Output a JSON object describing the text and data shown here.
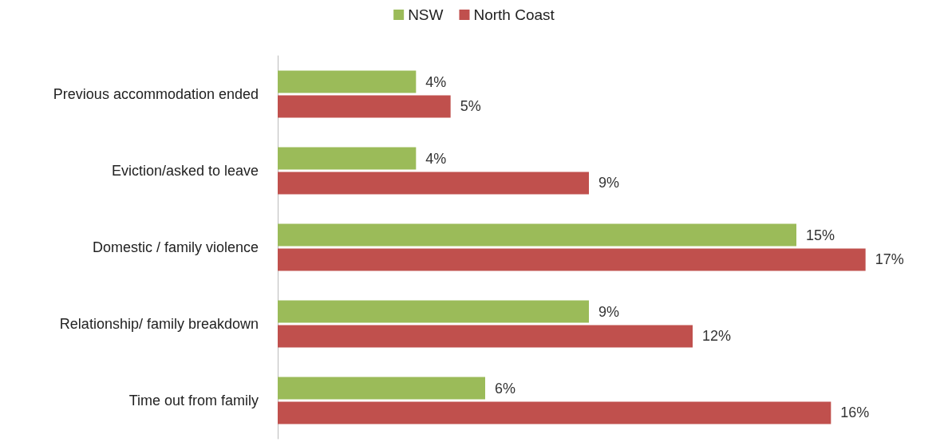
{
  "chart_data": {
    "type": "bar",
    "orientation": "horizontal",
    "categories": [
      "Previous accommodation ended",
      "Eviction/asked to leave",
      "Domestic / family violence",
      "Relationship/ family breakdown",
      "Time out from family"
    ],
    "series": [
      {
        "name": "NSW",
        "color": "#9bbb59",
        "values": [
          4,
          4,
          15,
          9,
          6
        ],
        "value_labels": [
          "4%",
          "4%",
          "15%",
          "9%",
          "6%"
        ]
      },
      {
        "name": "North Coast",
        "color": "#c0504d",
        "values": [
          5,
          9,
          17,
          12,
          16
        ],
        "value_labels": [
          "5%",
          "9%",
          "17%",
          "12%",
          "16%"
        ]
      }
    ],
    "legend": "top",
    "grid": false,
    "tick_labels": "y"
  }
}
